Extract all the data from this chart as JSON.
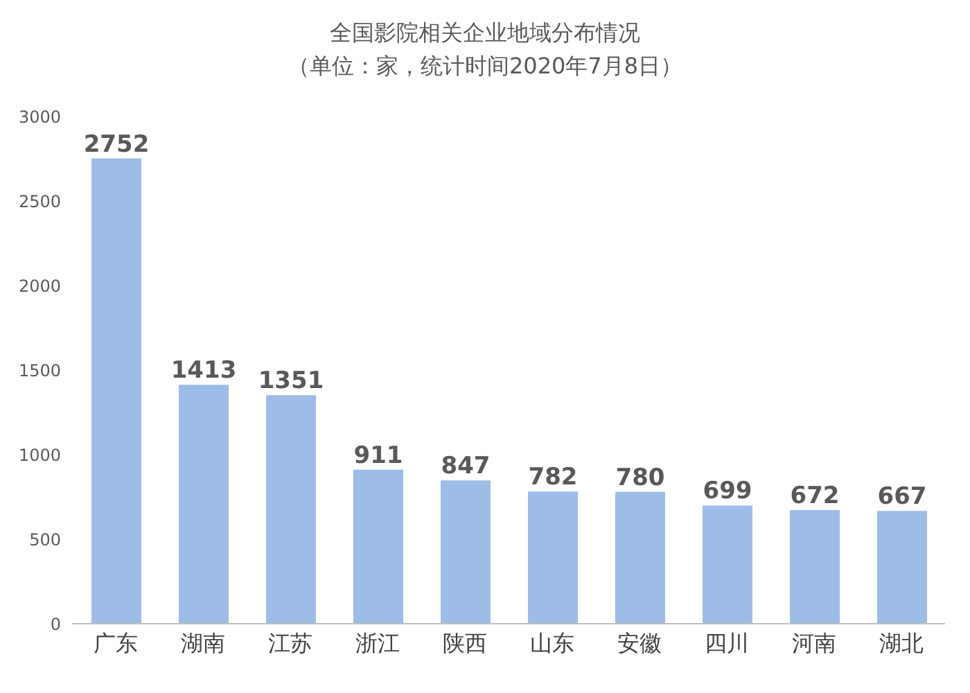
{
  "chart_data": {
    "type": "bar",
    "title": "全国影院相关企业地域分布情况",
    "subtitle": "（单位：家，统计时间2020年7月8日）",
    "categories": [
      "广东",
      "湖南",
      "江苏",
      "浙江",
      "陕西",
      "山东",
      "安徽",
      "四川",
      "河南",
      "湖北"
    ],
    "values": [
      2752,
      1413,
      1351,
      911,
      847,
      782,
      780,
      699,
      672,
      667
    ],
    "color": "#9dbde6",
    "ylim": [
      0,
      3000
    ],
    "yticks": [
      0,
      500,
      1000,
      1500,
      2000,
      2500,
      3000
    ],
    "grid": false,
    "data_labels": true
  }
}
